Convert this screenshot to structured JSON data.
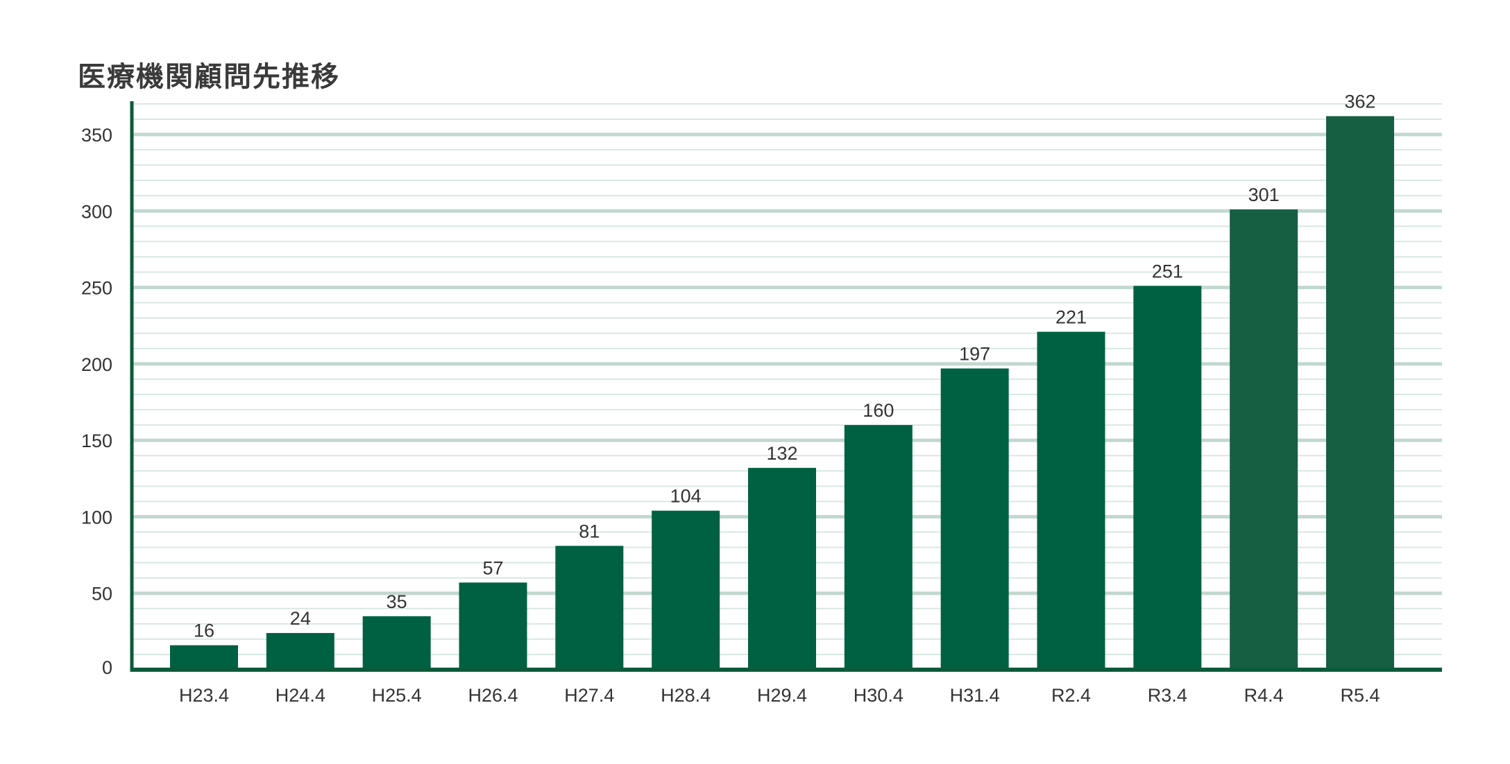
{
  "chart_data": {
    "type": "bar",
    "title": "医療機関顧問先推移",
    "xlabel": "",
    "ylabel": "",
    "categories": [
      "H23.4",
      "H24.4",
      "H25.4",
      "H26.4",
      "H27.4",
      "H28.4",
      "H29.4",
      "H30.4",
      "H31.4",
      "R2.4",
      "R3.4",
      "R4.4",
      "R5.4"
    ],
    "values": [
      16,
      24,
      35,
      57,
      81,
      104,
      132,
      160,
      197,
      221,
      251,
      301,
      362
    ],
    "ylim": [
      0,
      370
    ],
    "yticks": [
      0,
      50,
      100,
      150,
      200,
      250,
      300,
      350
    ],
    "grid": true,
    "legend": "none",
    "colors": {
      "bar": "#006142",
      "bar_recent": "#165f43",
      "axis": "#0b5a3a",
      "grid_major": "#c2d8cf",
      "grid_minor": "#d9e7e1"
    }
  }
}
